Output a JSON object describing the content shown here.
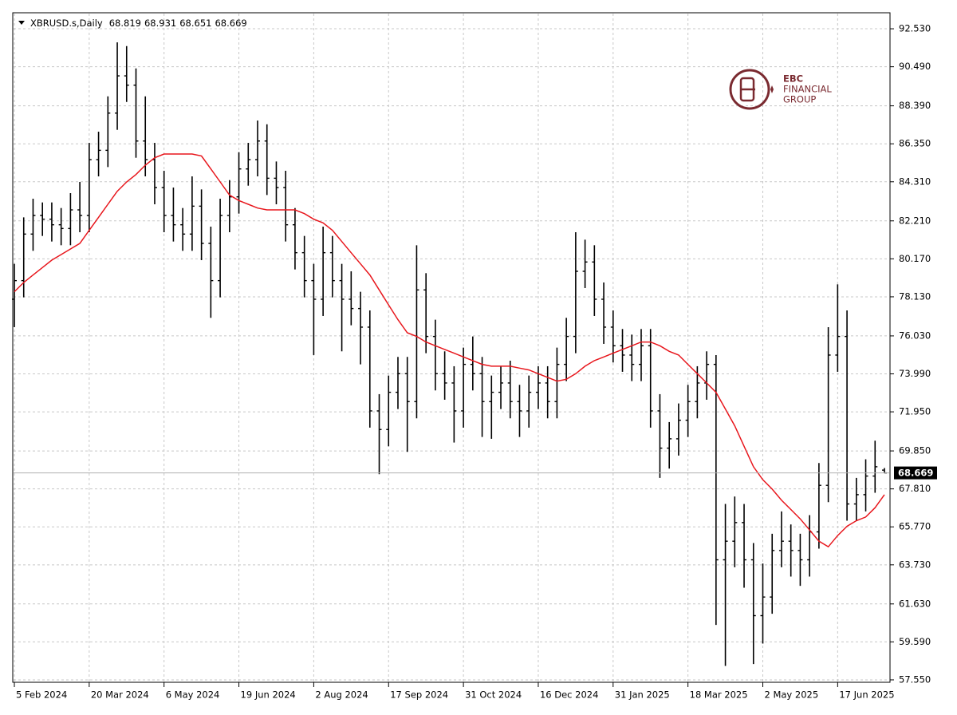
{
  "chart_data": {
    "type": "ohlc",
    "title": "XBRUSD.s,Daily",
    "color": "#000000",
    "grid": true,
    "x": [
      0,
      4,
      8,
      12,
      16,
      20,
      24,
      28,
      32,
      36,
      40,
      44,
      48,
      52,
      56,
      60,
      64,
      68,
      72,
      76,
      80,
      84,
      88,
      92,
      96,
      100,
      104,
      108,
      112,
      116,
      120,
      124,
      128,
      132,
      136,
      140,
      144,
      148,
      152,
      156,
      160,
      164,
      168,
      172,
      176,
      180,
      184,
      188,
      192,
      196,
      200,
      204,
      208,
      212,
      216,
      220,
      224,
      228,
      232,
      236,
      240,
      244,
      248,
      252,
      256,
      260,
      264,
      268,
      272,
      276,
      280,
      284,
      288,
      292,
      296,
      300,
      304,
      308,
      312,
      316,
      320,
      324,
      328,
      332,
      336,
      340,
      344,
      348,
      352,
      356,
      360,
      364,
      368,
      372
    ],
    "open": [
      78.0,
      79.0,
      81.5,
      82.5,
      82.3,
      82.0,
      81.8,
      82.8,
      82.5,
      85.5,
      86.0,
      88.0,
      90.0,
      89.5,
      86.5,
      85.5,
      84.0,
      82.5,
      82.0,
      81.5,
      83.0,
      81.0,
      79.0,
      82.5,
      83.5,
      85.0,
      85.5,
      86.5,
      84.5,
      84.0,
      82.0,
      80.5,
      79.0,
      78.0,
      80.5,
      79.0,
      78.0,
      77.5,
      76.5,
      72.0,
      71.0,
      73.0,
      74.0,
      72.5,
      78.5,
      76.0,
      74.0,
      73.5,
      72.0,
      74.5,
      74.0,
      72.5,
      73.0,
      73.5,
      72.5,
      72.0,
      73.0,
      73.5,
      72.5,
      74.5,
      76.0,
      79.5,
      80.0,
      78.0,
      76.5,
      75.5,
      75.0,
      74.5,
      75.5,
      72.0,
      70.0,
      70.5,
      71.5,
      72.5,
      73.5,
      74.5,
      64.0,
      65.0,
      66.0,
      64.0,
      61.0,
      62.0,
      64.5,
      65.0,
      64.5,
      64.0,
      65.5,
      68.0,
      75.0,
      76.0,
      67.0,
      67.5,
      68.5,
      68.819
    ],
    "high": [
      79.9,
      82.4,
      83.4,
      83.2,
      83.2,
      82.9,
      83.7,
      84.3,
      86.4,
      87.0,
      88.9,
      91.8,
      91.6,
      90.4,
      88.9,
      86.4,
      84.9,
      84.0,
      82.9,
      84.6,
      83.9,
      81.9,
      83.4,
      84.4,
      85.9,
      86.4,
      87.6,
      87.4,
      85.4,
      84.9,
      82.9,
      81.4,
      79.9,
      81.9,
      81.4,
      79.9,
      79.5,
      78.4,
      77.4,
      72.9,
      73.9,
      74.9,
      74.9,
      80.9,
      79.4,
      76.9,
      75.2,
      74.4,
      75.4,
      76.0,
      74.9,
      73.9,
      74.4,
      74.7,
      73.4,
      73.9,
      74.4,
      74.4,
      75.4,
      77.0,
      81.6,
      81.2,
      80.9,
      78.9,
      77.4,
      76.4,
      76.1,
      76.4,
      76.4,
      72.9,
      71.4,
      72.4,
      73.4,
      74.4,
      75.2,
      75.0,
      67.0,
      67.4,
      67.0,
      64.9,
      63.8,
      65.4,
      66.6,
      65.9,
      65.4,
      66.4,
      69.2,
      76.5,
      78.8,
      77.4,
      68.4,
      69.4,
      70.4,
      68.931
    ],
    "low": [
      76.5,
      78.1,
      80.6,
      81.4,
      81.1,
      80.9,
      80.9,
      81.6,
      81.6,
      84.6,
      85.1,
      87.1,
      88.6,
      85.6,
      84.6,
      83.1,
      81.6,
      81.1,
      80.6,
      80.6,
      80.1,
      77.0,
      78.1,
      81.6,
      82.6,
      84.1,
      84.6,
      83.6,
      83.1,
      81.1,
      79.6,
      78.1,
      75.0,
      77.1,
      78.1,
      75.2,
      76.6,
      74.5,
      71.1,
      68.6,
      70.1,
      72.1,
      69.8,
      71.6,
      75.1,
      73.1,
      72.6,
      70.3,
      71.1,
      73.1,
      70.6,
      70.5,
      72.1,
      71.6,
      70.6,
      71.1,
      72.1,
      71.6,
      71.6,
      73.6,
      75.1,
      78.6,
      77.1,
      75.6,
      74.6,
      74.1,
      73.6,
      73.6,
      71.1,
      68.4,
      68.9,
      69.6,
      70.6,
      71.6,
      72.6,
      60.5,
      58.3,
      63.6,
      62.5,
      58.4,
      59.5,
      61.1,
      63.6,
      63.1,
      62.6,
      63.1,
      64.6,
      67.1,
      74.1,
      66.1,
      66.1,
      66.6,
      67.6,
      68.651
    ],
    "close": [
      79.0,
      81.5,
      82.5,
      82.3,
      82.0,
      81.8,
      82.8,
      82.5,
      85.5,
      86.0,
      88.0,
      90.0,
      89.5,
      86.5,
      85.5,
      84.0,
      82.5,
      82.0,
      81.5,
      83.0,
      81.0,
      79.0,
      82.5,
      83.5,
      85.0,
      85.5,
      86.5,
      84.5,
      84.0,
      82.0,
      80.5,
      79.0,
      78.0,
      80.5,
      79.0,
      78.0,
      77.5,
      76.5,
      72.0,
      71.0,
      73.0,
      74.0,
      72.5,
      78.5,
      76.0,
      74.0,
      73.5,
      72.0,
      74.5,
      74.0,
      72.5,
      73.0,
      73.5,
      72.5,
      72.0,
      73.0,
      73.5,
      72.5,
      74.5,
      76.0,
      79.5,
      80.0,
      78.0,
      76.5,
      75.5,
      75.0,
      74.5,
      75.5,
      72.0,
      70.0,
      70.5,
      71.5,
      72.5,
      73.5,
      74.5,
      64.0,
      65.0,
      66.0,
      64.0,
      61.0,
      62.0,
      64.5,
      65.0,
      64.5,
      64.0,
      65.5,
      68.0,
      75.0,
      76.0,
      67.0,
      67.5,
      68.5,
      69.0,
      68.669
    ],
    "overlay": {
      "color": "#e8171d",
      "values": [
        78.4,
        78.9,
        79.3,
        79.7,
        80.1,
        80.4,
        80.7,
        81.0,
        81.7,
        82.4,
        83.1,
        83.8,
        84.3,
        84.7,
        85.2,
        85.6,
        85.8,
        85.8,
        85.8,
        85.8,
        85.7,
        85.0,
        84.3,
        83.6,
        83.3,
        83.1,
        82.9,
        82.8,
        82.8,
        82.8,
        82.8,
        82.6,
        82.3,
        82.1,
        81.7,
        81.1,
        80.5,
        79.9,
        79.3,
        78.5,
        77.7,
        76.9,
        76.2,
        76.0,
        75.7,
        75.5,
        75.3,
        75.1,
        74.9,
        74.7,
        74.5,
        74.4,
        74.4,
        74.4,
        74.3,
        74.2,
        74.0,
        73.8,
        73.6,
        73.7,
        74.0,
        74.4,
        74.7,
        74.9,
        75.1,
        75.3,
        75.5,
        75.7,
        75.7,
        75.5,
        75.2,
        75.0,
        74.5,
        74.0,
        73.5,
        73.0,
        72.1,
        71.2,
        70.1,
        69.0,
        68.3,
        67.8,
        67.2,
        66.7,
        66.2,
        65.6,
        65.0,
        64.7,
        65.3,
        65.8,
        66.1,
        66.3,
        66.8,
        67.5
      ]
    },
    "xlim": [
      0,
      374
    ],
    "xticks": [
      {
        "value": 0,
        "label": "5 Feb 2024"
      },
      {
        "value": 32,
        "label": "20 Mar 2024"
      },
      {
        "value": 64,
        "label": "6 May 2024"
      },
      {
        "value": 96,
        "label": "19 Jun 2024"
      },
      {
        "value": 128,
        "label": "2 Aug 2024"
      },
      {
        "value": 160,
        "label": "17 Sep 2024"
      },
      {
        "value": 192,
        "label": "31 Oct 2024"
      },
      {
        "value": 224,
        "label": "16 Dec 2024"
      },
      {
        "value": 256,
        "label": "31 Jan 2025"
      },
      {
        "value": 288,
        "label": "18 Mar 2025"
      },
      {
        "value": 320,
        "label": "2 May 2025"
      },
      {
        "value": 352,
        "label": "17 Jun 2025"
      }
    ],
    "ylim": [
      57.42,
      93.39
    ],
    "yticks": [
      {
        "value": 92.53,
        "label": "92.530"
      },
      {
        "value": 90.49,
        "label": "90.490"
      },
      {
        "value": 88.39,
        "label": "88.390"
      },
      {
        "value": 86.35,
        "label": "86.350"
      },
      {
        "value": 84.31,
        "label": "84.310"
      },
      {
        "value": 82.21,
        "label": "82.210"
      },
      {
        "value": 80.17,
        "label": "80.170"
      },
      {
        "value": 78.13,
        "label": "78.130"
      },
      {
        "value": 76.03,
        "label": "76.030"
      },
      {
        "value": 73.99,
        "label": "73.990"
      },
      {
        "value": 71.95,
        "label": "71.950"
      },
      {
        "value": 69.85,
        "label": "69.850"
      },
      {
        "value": 67.81,
        "label": "67.810"
      },
      {
        "value": 65.77,
        "label": "65.770"
      },
      {
        "value": 63.73,
        "label": "63.730"
      },
      {
        "value": 61.63,
        "label": "61.630"
      },
      {
        "value": 59.59,
        "label": "59.590"
      },
      {
        "value": 57.55,
        "label": "57.550"
      }
    ]
  },
  "logo": {
    "line1": "EBC",
    "line2": "FINANCIAL",
    "line3": "GROUP"
  }
}
